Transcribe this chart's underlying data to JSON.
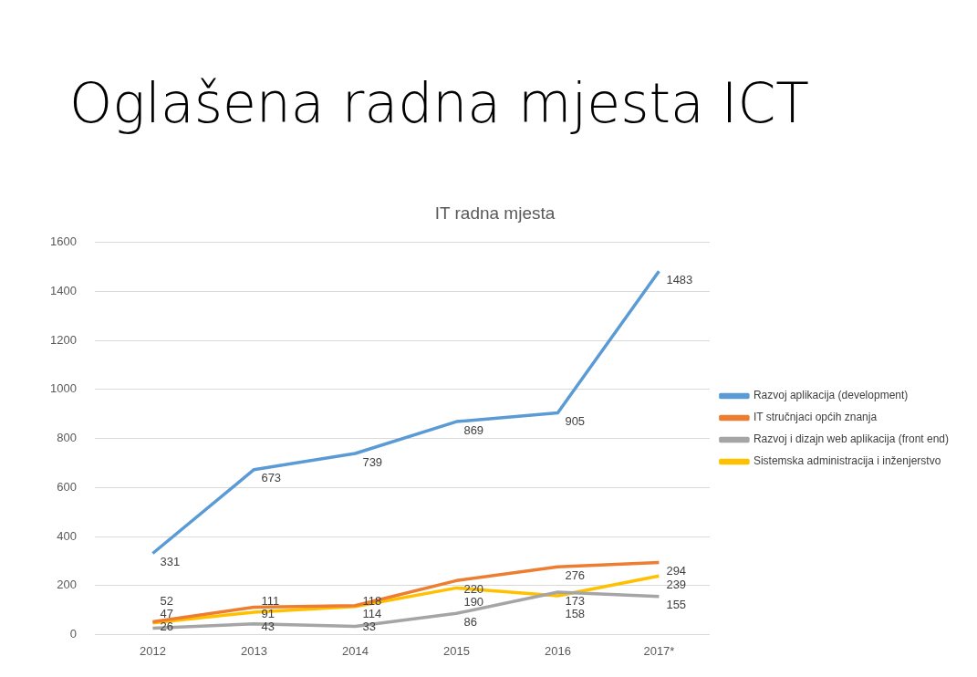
{
  "chart_data": {
    "type": "line",
    "title": "IT radna mjesta",
    "categories": [
      "2012",
      "2013",
      "2014",
      "2015",
      "2016",
      "2017*"
    ],
    "series": [
      {
        "name": "Razvoj aplikacija (development)",
        "color": "#5b9bd5",
        "values": [
          331,
          673,
          739,
          869,
          905,
          1483
        ]
      },
      {
        "name": "IT stručnjaci općih znanja",
        "color": "#ed7d31",
        "values": [
          52,
          111,
          118,
          220,
          276,
          294
        ]
      },
      {
        "name": "Razvoj i dizajn web aplikacija (front end)",
        "color": "#a5a5a5",
        "values": [
          26,
          43,
          33,
          86,
          173,
          155
        ]
      },
      {
        "name": "Sistemska administracija i inženjerstvo",
        "color": "#ffc000",
        "values": [
          47,
          91,
          114,
          190,
          158,
          239
        ]
      }
    ],
    "ylim": [
      0,
      1600
    ],
    "yticks": [
      0,
      200,
      400,
      600,
      800,
      1000,
      1200,
      1400,
      1600
    ],
    "grid": "y",
    "legend": "right",
    "marker": "none",
    "line_style": "solid",
    "data_labels": true,
    "annotations": [
      "Oglašena radna mjesta ICT"
    ]
  }
}
